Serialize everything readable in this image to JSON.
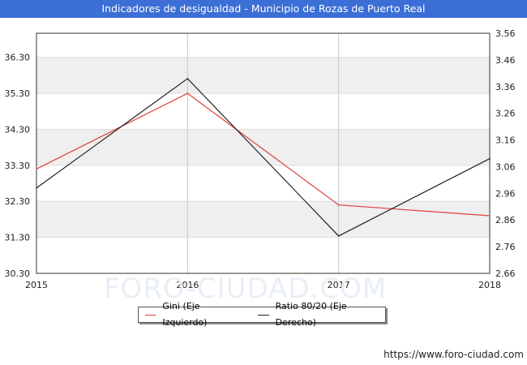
{
  "title": "Indicadores de desigualdad - Municipio de Rozas de Puerto Real",
  "watermark_logo": "FORO-CIUDAD.COM",
  "watermark_url": "https://www.foro-ciudad.com",
  "colors": {
    "title_bg": "#3b6fd6",
    "gini": "#e04040",
    "ratio": "#222222",
    "band": "#efefef"
  },
  "chart_data": {
    "type": "line",
    "x": [
      2015,
      2016,
      2017,
      2018
    ],
    "x_tick_labels": [
      "2015",
      "2016",
      "2017",
      "2018"
    ],
    "series": [
      {
        "name": "Gini (Eje Izquierdo)",
        "axis": "left",
        "values": [
          33.2,
          35.3,
          32.2,
          31.9
        ]
      },
      {
        "name": "Ratio 80/20 (Eje Derecho)",
        "axis": "right",
        "values": [
          2.98,
          3.39,
          2.8,
          3.09
        ]
      }
    ],
    "y_left": {
      "range": [
        30.3,
        36.97
      ],
      "ticks": [
        30.3,
        31.3,
        32.3,
        33.3,
        34.3,
        35.3,
        36.3
      ],
      "tick_labels": [
        "30.30",
        "31.30",
        "32.30",
        "33.30",
        "34.30",
        "35.30",
        "36.30"
      ]
    },
    "y_right": {
      "range": [
        2.66,
        3.56
      ],
      "ticks": [
        2.66,
        2.76,
        2.86,
        2.96,
        3.06,
        3.16,
        3.26,
        3.36,
        3.46,
        3.56
      ],
      "tick_labels": [
        "2.66",
        "2.76",
        "2.86",
        "2.96",
        "3.06",
        "3.16",
        "3.26",
        "3.36",
        "3.46",
        "3.56"
      ]
    },
    "grid": true,
    "legend_position": "bottom-center"
  }
}
